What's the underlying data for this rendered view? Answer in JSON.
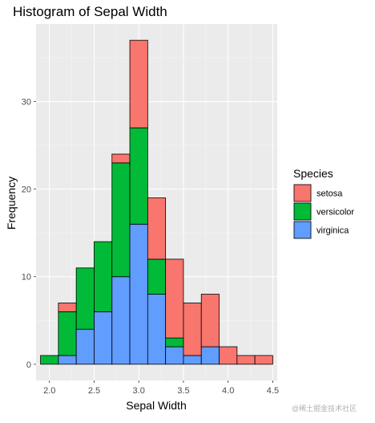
{
  "chart_data": {
    "type": "bar",
    "stacked": true,
    "title": "Histogram of Sepal Width",
    "xlabel": "Sepal Width",
    "ylabel": "Frequency",
    "xlim": [
      1.85,
      4.55
    ],
    "ylim": [
      -1.85,
      38.85
    ],
    "x_ticks": [
      2.0,
      2.5,
      3.0,
      3.5,
      4.0,
      4.5
    ],
    "x_tick_labels": [
      "2.0",
      "2.5",
      "3.0",
      "3.5",
      "4.0",
      "4.5"
    ],
    "y_ticks": [
      0,
      10,
      20,
      30
    ],
    "y_tick_labels": [
      "0",
      "10",
      "20",
      "30"
    ],
    "bin_width": 0.2,
    "bin_centers": [
      2.0,
      2.2,
      2.4,
      2.6,
      2.8,
      3.0,
      3.2,
      3.4,
      3.6,
      3.8,
      4.0,
      4.2,
      4.4
    ],
    "series": [
      {
        "name": "setosa",
        "color": "#F8766D",
        "values": [
          0,
          1,
          0,
          0,
          1,
          10,
          7,
          9,
          6,
          6,
          2,
          1,
          1
        ]
      },
      {
        "name": "versicolor",
        "color": "#00BA38",
        "values": [
          1,
          5,
          7,
          8,
          13,
          11,
          4,
          1,
          0,
          0,
          0,
          0,
          0
        ]
      },
      {
        "name": "virginica",
        "color": "#619CFF",
        "values": [
          0,
          1,
          4,
          6,
          10,
          16,
          8,
          2,
          1,
          2,
          0,
          0,
          0
        ]
      }
    ],
    "stack_order": [
      "virginica",
      "versicolor",
      "setosa"
    ],
    "grid": true,
    "panel_background": "#EBEBEB",
    "legend": {
      "title": "Species",
      "position": "right"
    }
  },
  "watermark": "@稀土掘金技术社区"
}
